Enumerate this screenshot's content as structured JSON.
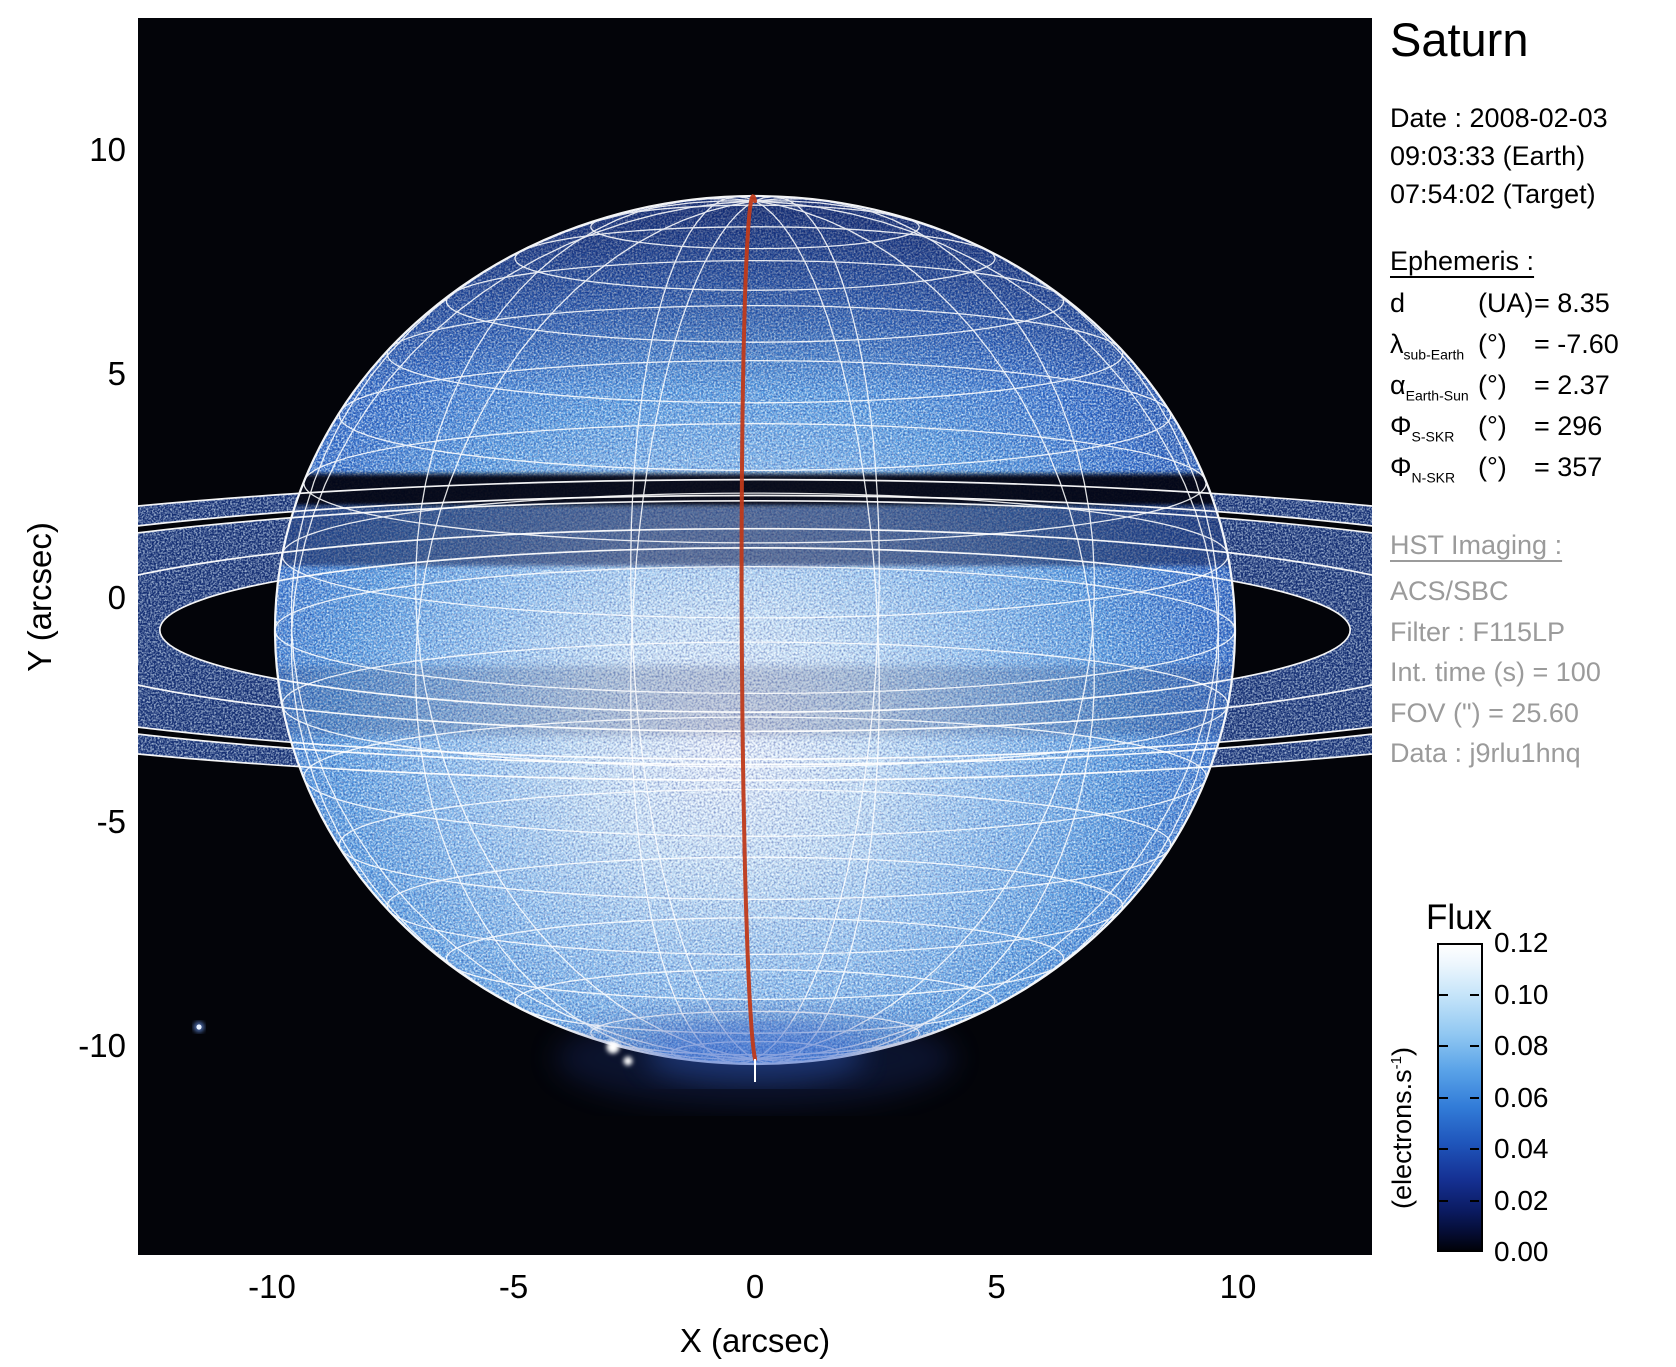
{
  "title": "Saturn",
  "observation": {
    "date_line": "Date : 2008-02-03",
    "time_earth": "09:03:33 (Earth)",
    "time_target": "07:54:02 (Target)"
  },
  "ephemeris": {
    "heading": "Ephemeris :",
    "rows": [
      {
        "symbol": "d",
        "sub": "",
        "unit": "(UA)",
        "value": "= 8.35"
      },
      {
        "symbol": "λ",
        "sub": "sub-Earth",
        "unit": "(°)",
        "value": "= -7.60"
      },
      {
        "symbol": "α",
        "sub": "Earth-Sun",
        "unit": "(°)",
        "value": "= 2.37"
      },
      {
        "symbol": "Φ",
        "sub": "S-SKR",
        "unit": "(°)",
        "value": "= 296"
      },
      {
        "symbol": "Φ",
        "sub": "N-SKR",
        "unit": "(°)",
        "value": "= 357"
      }
    ]
  },
  "hst": {
    "heading": "HST Imaging :",
    "lines": [
      "ACS/SBC",
      "Filter : F115LP",
      "Int. time (s) = 100",
      "FOV (\") = 25.60",
      "Data : j9rlu1hnq"
    ]
  },
  "axes": {
    "x_label": "X (arcsec)",
    "y_label": "Y (arcsec)",
    "x_ticks": [
      "-10",
      "-5",
      "0",
      "5",
      "10"
    ],
    "y_ticks": [
      "10",
      "5",
      "0",
      "-5",
      "-10"
    ]
  },
  "colorbar": {
    "title": "Flux",
    "unit_pre": "(electrons.s",
    "unit_sup": "-1",
    "unit_post": ")",
    "tick_labels": [
      "0.12",
      "0.10",
      "0.08",
      "0.06",
      "0.04",
      "0.02",
      "0.00"
    ]
  },
  "chart_data": {
    "type": "heatmap",
    "title": "Saturn",
    "xlabel": "X (arcsec)",
    "ylabel": "Y (arcsec)",
    "xlim": [
      -12.8,
      12.8
    ],
    "ylim": [
      -13.7,
      11.9
    ],
    "x_ticks": [
      -10,
      -5,
      0,
      5,
      10
    ],
    "y_ticks": [
      10,
      5,
      0,
      -5,
      -10
    ],
    "grid": false,
    "colorbar": {
      "label": "Flux (electrons.s-1)",
      "min": 0.0,
      "max": 0.12,
      "tick_step": 0.02,
      "colormap": [
        "#000000",
        "#0b1b62",
        "#1f55bb",
        "#5aa3e8",
        "#c3e3f9",
        "#ffffff"
      ]
    },
    "image_content": {
      "description": "Far-UV HST image of Saturn (speckled blue/white disk on black sky) with overlaid white planetocentric graticule, white ring-edge ellipses, dark ring/shadow band crossing the disk north of center, and a red-orange central meridian line ending at the south pole; rings extend past both plot edges",
      "planet_center_arcsec": [
        0.0,
        -0.5
      ],
      "planet_equatorial_radius_arcsec": 9.9,
      "planet_polar_flattening": 0.9,
      "sub_earth_latitude_deg": -7.6,
      "ring_edge_radii_planet_radii": [
        1.24,
        1.53,
        1.95,
        2.03,
        2.27
      ],
      "ring_opening_ratio": 0.138,
      "graticule_lat_step_deg": 10,
      "graticule_lon_step_deg": 30,
      "overlay_colors": {
        "graticule": "#ffffff",
        "central_meridian": "#bf3a1a"
      },
      "point_sources": [
        {
          "x_arcsec": -11.5,
          "y_arcsec": -9.0,
          "note": "faint blue star-like dot lower left"
        }
      ],
      "bright_spots": "white auroral patches near the south pole"
    },
    "ephemeris_values": {
      "d_UA": 8.35,
      "lambda_sub_earth_deg": -7.6,
      "alpha_earth_sun_deg": 2.37,
      "phi_S_SKR_deg": 296,
      "phi_N_SKR_deg": 357
    },
    "hst_values": {
      "instrument": "ACS/SBC",
      "filter": "F115LP",
      "int_time_s": 100,
      "fov_arcsec": 25.6,
      "dataset": "j9rlu1hnq"
    }
  }
}
